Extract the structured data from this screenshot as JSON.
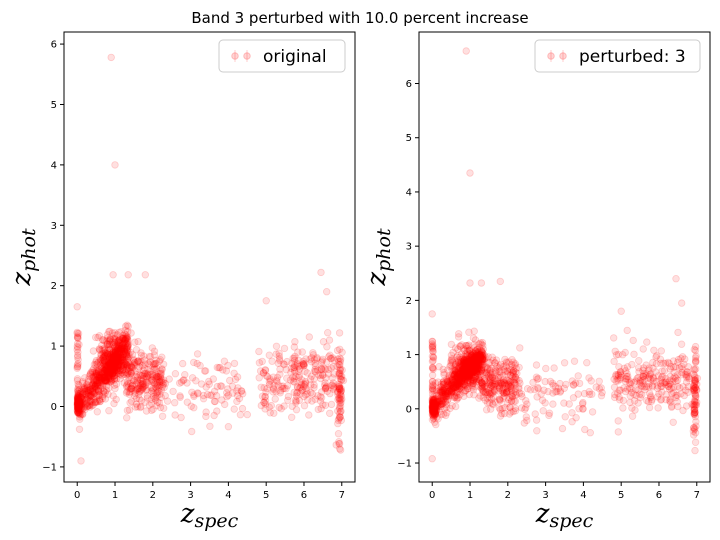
{
  "figure_title": "Band 3 perturbed with 10.0 percent increase",
  "colors": {
    "points": "#ff0000",
    "axes": "#000000",
    "background": "#ffffff"
  },
  "chart_data": [
    {
      "type": "scatter",
      "title": "",
      "xlabel_main": "z",
      "xlabel_sub": "spec",
      "ylabel_main": "z",
      "ylabel_sub": "phot",
      "legend": "original",
      "legend_position": "top-right",
      "grid": false,
      "xlim": [
        -0.35,
        7.35
      ],
      "ylim": [
        -1.25,
        6.2
      ],
      "xticks": [
        0,
        1,
        2,
        3,
        4,
        5,
        6,
        7
      ],
      "yticks": [
        -1,
        0,
        1,
        2,
        3,
        4,
        5,
        6
      ],
      "notable_points": [
        [
          0.9,
          5.78
        ],
        [
          1.0,
          4.0
        ],
        [
          0.95,
          2.18
        ],
        [
          1.35,
          2.18
        ],
        [
          1.8,
          2.18
        ],
        [
          6.45,
          2.22
        ],
        [
          6.6,
          1.9
        ],
        [
          5.0,
          1.75
        ],
        [
          0.1,
          -0.9
        ],
        [
          0.0,
          1.65
        ]
      ],
      "series": [
        {
          "name": "original",
          "generator": "cluster",
          "color": "#ff0000",
          "alpha": 0.12
        }
      ]
    },
    {
      "type": "scatter",
      "title": "",
      "xlabel_main": "z",
      "xlabel_sub": "spec",
      "ylabel_main": "z",
      "ylabel_sub": "phot",
      "legend": "perturbed: 3",
      "legend_position": "top-right",
      "grid": false,
      "xlim": [
        -0.35,
        7.35
      ],
      "ylim": [
        -1.35,
        6.95
      ],
      "xticks": [
        0,
        1,
        2,
        3,
        4,
        5,
        6,
        7
      ],
      "yticks": [
        -1,
        0,
        1,
        2,
        3,
        4,
        5,
        6
      ],
      "notable_points": [
        [
          0.9,
          6.6
        ],
        [
          1.0,
          4.35
        ],
        [
          1.0,
          2.32
        ],
        [
          1.3,
          2.32
        ],
        [
          1.8,
          2.35
        ],
        [
          6.45,
          2.4
        ],
        [
          6.6,
          1.95
        ],
        [
          5.0,
          1.8
        ],
        [
          0.0,
          -0.92
        ],
        [
          0.0,
          1.75
        ]
      ],
      "series": [
        {
          "name": "perturbed: 3",
          "generator": "cluster",
          "color": "#ff0000",
          "alpha": 0.12
        }
      ]
    }
  ]
}
